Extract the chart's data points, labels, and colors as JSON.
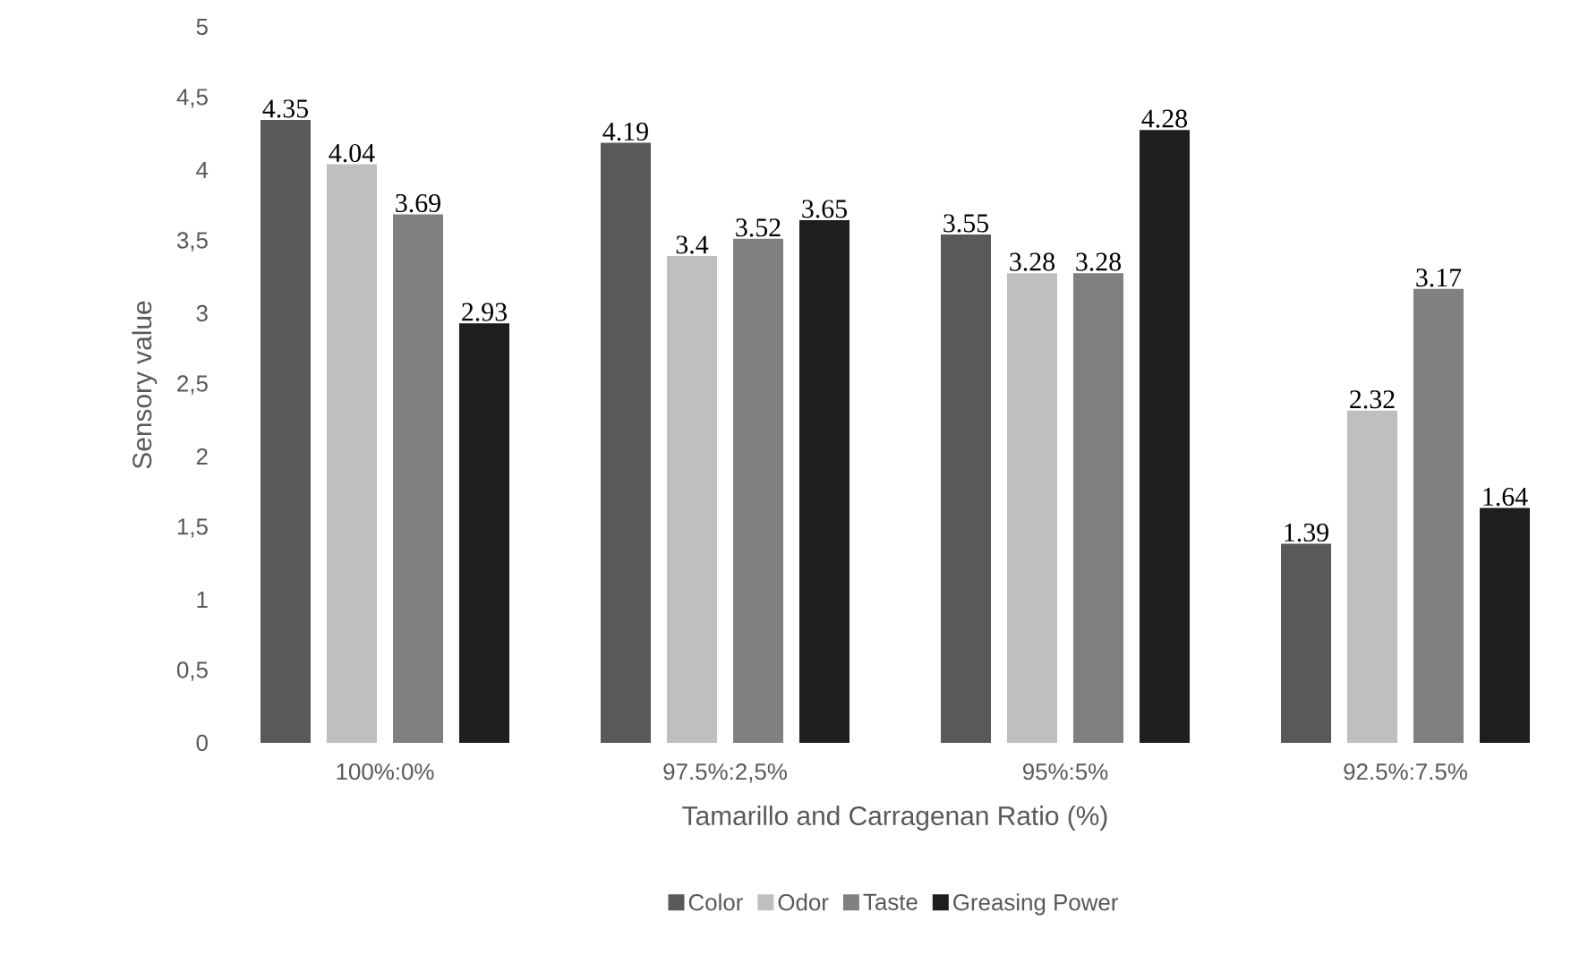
{
  "chart_data": {
    "type": "bar",
    "xlabel": "Tamarillo and Carragenan Ratio (%)",
    "ylabel": "Sensory value",
    "categories": [
      "100%:0%",
      "97.5%:2,5%",
      "95%:5%",
      "92.5%:7.5%"
    ],
    "series": [
      {
        "name": "Color",
        "color": "#595959",
        "values": [
          4.35,
          4.19,
          3.55,
          1.39
        ]
      },
      {
        "name": "Odor",
        "color": "#bfbfbf",
        "values": [
          4.04,
          3.4,
          3.28,
          2.32
        ]
      },
      {
        "name": "Taste",
        "color": "#808080",
        "values": [
          3.69,
          3.52,
          3.28,
          3.17
        ]
      },
      {
        "name": "Greasing Power",
        "color": "#1e1e1e",
        "values": [
          2.93,
          3.65,
          4.28,
          1.64
        ]
      }
    ],
    "ylim": [
      0,
      5
    ],
    "yticks": [
      0,
      {
        "value": 0.5,
        "label": "0,5"
      },
      1,
      {
        "value": 1.5,
        "label": "1,5"
      },
      2,
      {
        "value": 2.5,
        "label": "2,5"
      },
      3,
      {
        "value": 3.5,
        "label": "3,5"
      },
      4,
      {
        "value": 4.5,
        "label": "4,5"
      },
      5
    ],
    "data_labels": true,
    "legend": "bottom",
    "grid": false
  }
}
